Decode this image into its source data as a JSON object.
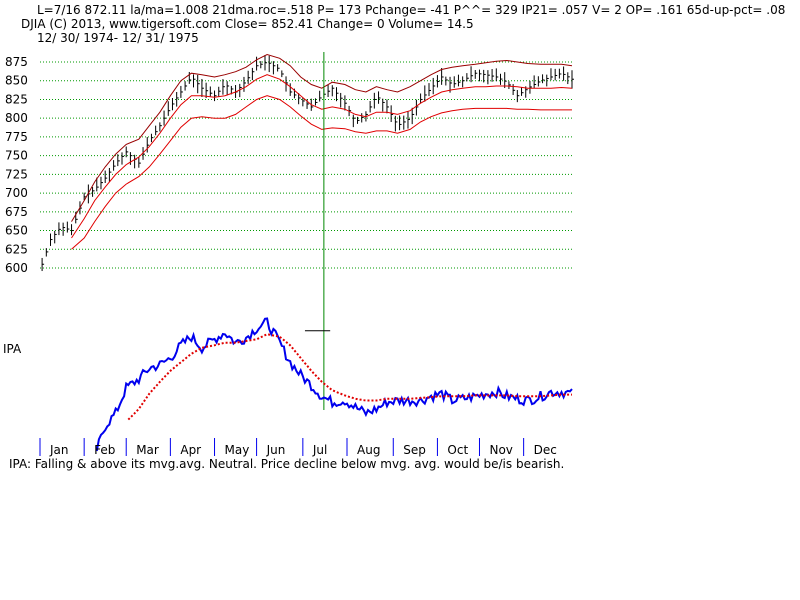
{
  "header": {
    "line1": "L=7/16  872.11  la/ma=1.008 21dma.roc=.518 P=  173 Pchange= -41 P^^= 329 IP21= .057 V= 2 OP= .161 65d-up-pct= .08",
    "line2": "DJIA    (C) 2013, www.tigersoft.com     Close=  852.41  Change= 0 Volume= 14.5",
    "line3": "12/ 30/ 1974- 12/ 31/ 1975"
  },
  "ipa_label": "IPA",
  "ipa_status": "IPA: Falling & above its mvg.avg. Neutral. Price decline below mvg. avg. would be/is bearish.",
  "colors": {
    "price_bars": "#000000",
    "bands": "#e00000",
    "gridlines": "#009900",
    "ipa_line": "#0000ee",
    "ipa_mvg_avg": "#e00000",
    "marker_line": "#008800"
  },
  "chart_data": [
    {
      "type": "line",
      "chart_subtype": "ohlc-bars-with-bands",
      "title": "DJIA",
      "yticks": [
        600,
        625,
        650,
        675,
        700,
        725,
        750,
        775,
        800,
        825,
        850,
        875
      ],
      "ylim": [
        600,
        885
      ],
      "grid": true,
      "gridline_style": "dotted",
      "x": [
        1,
        5,
        10,
        15,
        21,
        26,
        31,
        36,
        41,
        47,
        52,
        57,
        62,
        67,
        72,
        77,
        83,
        88,
        93,
        98,
        103,
        108,
        114,
        119,
        124,
        129,
        134,
        139,
        145,
        150,
        155,
        160,
        165,
        170,
        176,
        181,
        186,
        191,
        196,
        201,
        207,
        212,
        217,
        222,
        227,
        232,
        238,
        243,
        248,
        253
      ],
      "series": [
        {
          "role": "price-close",
          "values": [
            605,
            638,
            655,
            650,
            695,
            705,
            720,
            740,
            755,
            740,
            770,
            790,
            815,
            835,
            855,
            840,
            830,
            845,
            835,
            850,
            870,
            875,
            865,
            835,
            825,
            815,
            830,
            840,
            820,
            795,
            805,
            830,
            815,
            790,
            800,
            825,
            840,
            855,
            845,
            850,
            860,
            858,
            855,
            848,
            830,
            840,
            850,
            855,
            860,
            852
          ]
        },
        {
          "role": "upper-band",
          "values": [
            null,
            null,
            null,
            662,
            690,
            715,
            735,
            752,
            765,
            772,
            790,
            808,
            830,
            850,
            860,
            858,
            855,
            858,
            862,
            868,
            878,
            885,
            880,
            870,
            855,
            845,
            840,
            848,
            845,
            838,
            835,
            842,
            838,
            835,
            842,
            850,
            858,
            865,
            868,
            870,
            872,
            874,
            876,
            877,
            875,
            873,
            872,
            872,
            872,
            870
          ]
        },
        {
          "role": "middle-band",
          "values": [
            null,
            null,
            null,
            640,
            666,
            690,
            708,
            725,
            738,
            748,
            762,
            780,
            800,
            818,
            830,
            830,
            828,
            830,
            835,
            842,
            852,
            858,
            852,
            842,
            830,
            818,
            812,
            815,
            812,
            805,
            802,
            808,
            808,
            805,
            810,
            820,
            828,
            835,
            838,
            840,
            842,
            842,
            843,
            843,
            842,
            840,
            840,
            840,
            841,
            840
          ]
        },
        {
          "role": "lower-band",
          "values": [
            null,
            null,
            null,
            625,
            640,
            662,
            682,
            700,
            712,
            722,
            735,
            752,
            770,
            788,
            800,
            802,
            800,
            800,
            805,
            815,
            825,
            830,
            825,
            815,
            803,
            792,
            785,
            787,
            786,
            782,
            780,
            783,
            783,
            780,
            785,
            795,
            802,
            807,
            810,
            812,
            813,
            813,
            813,
            813,
            812,
            812,
            811,
            811,
            811,
            811
          ]
        }
      ]
    },
    {
      "type": "line",
      "title": "IPA",
      "xlabel_categories": [
        "Jan",
        "Feb",
        "Mar",
        "Apr",
        "May",
        "Jun",
        "Jul",
        "Aug",
        "Sep",
        "Oct",
        "Nov",
        "Dec"
      ],
      "grid": false,
      "ylim": [
        -1,
        1
      ],
      "x": [
        1,
        5,
        10,
        15,
        21,
        26,
        31,
        36,
        41,
        47,
        52,
        57,
        62,
        67,
        72,
        77,
        83,
        88,
        93,
        98,
        103,
        108,
        114,
        119,
        124,
        129,
        134,
        139,
        145,
        150,
        155,
        160,
        165,
        170,
        176,
        181,
        186,
        191,
        196,
        201,
        207,
        212,
        217,
        222,
        227,
        232,
        238,
        243,
        248,
        253
      ],
      "series": [
        {
          "role": "ipa",
          "values": [
            null,
            null,
            null,
            null,
            null,
            -0.95,
            -0.6,
            -0.45,
            -0.15,
            -0.05,
            0.08,
            0.12,
            0.2,
            0.35,
            0.45,
            0.32,
            0.42,
            0.5,
            0.38,
            0.44,
            0.55,
            0.62,
            0.38,
            0.15,
            0.0,
            -0.12,
            -0.25,
            -0.32,
            -0.3,
            -0.38,
            -0.45,
            -0.4,
            -0.32,
            -0.3,
            -0.3,
            -0.3,
            -0.25,
            -0.22,
            -0.3,
            -0.28,
            -0.25,
            -0.22,
            -0.2,
            -0.25,
            -0.28,
            -0.3,
            -0.25,
            -0.2,
            -0.2,
            -0.22
          ]
        },
        {
          "role": "ipa-moving-average",
          "values": [
            null,
            null,
            null,
            null,
            null,
            null,
            null,
            null,
            -0.55,
            -0.4,
            -0.22,
            -0.08,
            0.05,
            0.15,
            0.25,
            0.32,
            0.35,
            0.38,
            0.38,
            0.4,
            0.42,
            0.48,
            0.45,
            0.35,
            0.2,
            0.05,
            -0.08,
            -0.18,
            -0.24,
            -0.28,
            -0.3,
            -0.3,
            -0.28,
            -0.28,
            -0.28,
            -0.27,
            -0.26,
            -0.25,
            -0.25,
            -0.25,
            -0.24,
            -0.24,
            -0.24,
            -0.24,
            -0.25,
            -0.25,
            -0.25,
            -0.24,
            -0.23,
            -0.23
          ]
        }
      ]
    }
  ]
}
